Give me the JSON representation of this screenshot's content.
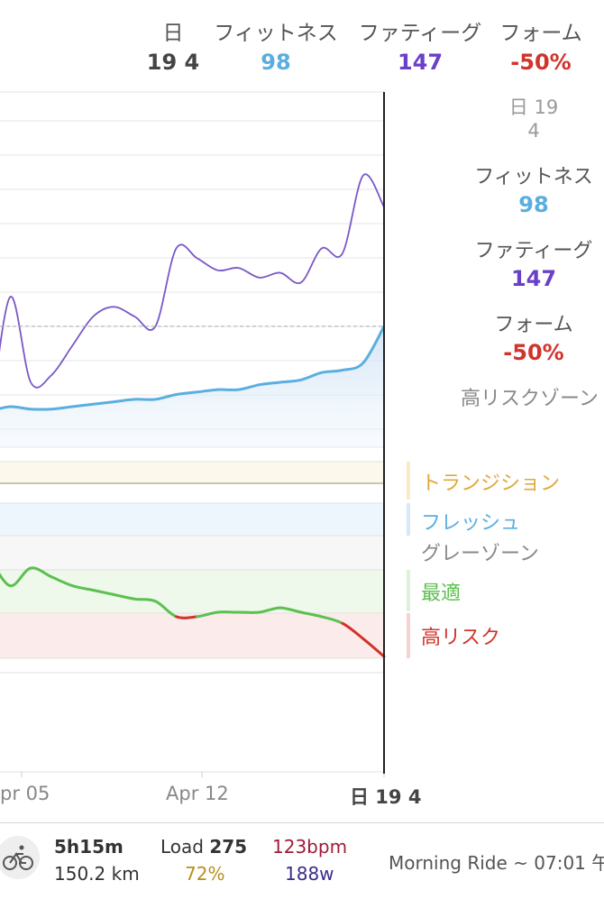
{
  "header": {
    "day": {
      "label": "日",
      "value": "19 4"
    },
    "fitness": {
      "label": "フィットネス",
      "value": "98"
    },
    "fatigue": {
      "label": "ファティーグ",
      "value": "147"
    },
    "form": {
      "label": "フォーム",
      "value": "-50%"
    }
  },
  "side": {
    "day_label": "日 19",
    "day_value": "4",
    "fitness_label": "フィットネス",
    "fitness_value": "98",
    "fatigue_label": "ファティーグ",
    "fatigue_value": "147",
    "form_label": "フォーム",
    "form_value": "-50%",
    "zone_label": "高リスクゾーン"
  },
  "legend": [
    {
      "label": "トランジション",
      "color": "#e0a83a"
    },
    {
      "label": "フレッシュ",
      "color": "#5aaee0"
    },
    {
      "label": "グレーゾーン",
      "color": "#888888"
    },
    {
      "label": "最適",
      "color": "#5cc04f"
    },
    {
      "label": "高リスク",
      "color": "#d0342c"
    }
  ],
  "xaxis": {
    "ticks": [
      "pr 05",
      "Apr 12"
    ],
    "current": "日 19 4"
  },
  "colors": {
    "fitness": "#5aaee0",
    "fatigue": "#7a58c8",
    "form_optimal": "#5cc04f",
    "form_high_risk": "#d0342c",
    "negative": "#d0342c"
  },
  "chart_data": {
    "type": "line",
    "title": "",
    "x": [
      "",
      "",
      "",
      "",
      "",
      "",
      "pr 05",
      "",
      "",
      "",
      "",
      "",
      "",
      "Apr 12",
      "",
      "",
      "",
      "",
      "",
      "日 19 4"
    ],
    "series": [
      {
        "name": "フィットネス",
        "values": [
          63,
          65,
          64,
          64,
          65,
          66,
          67,
          68,
          68,
          70,
          71,
          72,
          72,
          74,
          75,
          76,
          79,
          80,
          83,
          98
        ]
      },
      {
        "name": "ファティーグ",
        "values": [
          55,
          110,
          75,
          78,
          90,
          102,
          106,
          102,
          98,
          130,
          126,
          121,
          122,
          118,
          120,
          116,
          130,
          128,
          160,
          147
        ]
      },
      {
        "name": "フォーム",
        "values": [
          -5,
          -18,
          -10,
          -14,
          -18,
          -20,
          -22,
          -24,
          -25,
          -32,
          -32,
          -30,
          -30,
          -30,
          -28,
          -30,
          -32,
          -35,
          -42,
          -50
        ]
      }
    ],
    "form_zones": [
      "トランジション",
      "フレッシュ",
      "グレーゾーン",
      "最適",
      "高リスク"
    ]
  },
  "activity": {
    "duration": "5h15m",
    "distance": "150.2 km",
    "load_label": "Load",
    "load_value": "275",
    "intensity": "72%",
    "heart_rate": "123bpm",
    "power": "188w",
    "title": "Morning Ride ~ 07:01 午"
  }
}
